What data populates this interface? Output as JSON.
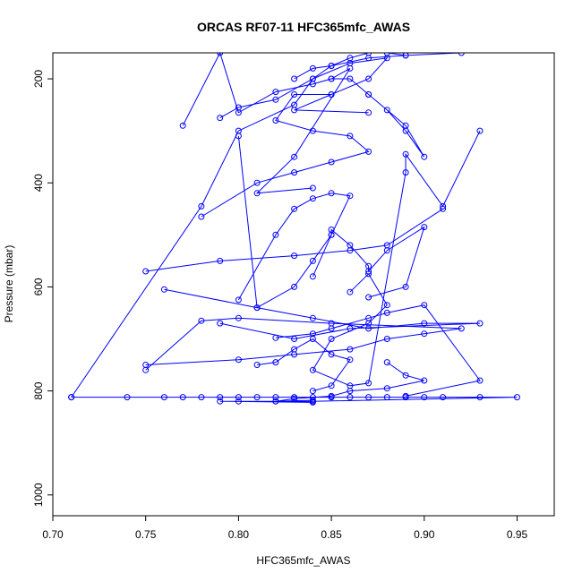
{
  "chart_data": {
    "type": "line",
    "title": "ORCAS RF07-11 HFC365mfc_AWAS",
    "xlabel": "HFC365mfc_AWAS",
    "ylabel": "Pressure (mbar)",
    "xlim": [
      0.7,
      0.97
    ],
    "ylim": [
      1040,
      150
    ],
    "y_inverted": true,
    "grid": false,
    "legend": "none",
    "marker": "open-circle",
    "color": "#0000ff",
    "x_ticks": [
      0.7,
      0.75,
      0.8,
      0.85,
      0.9,
      0.95
    ],
    "x_tick_labels": [
      "0.70",
      "0.75",
      "0.80",
      "0.85",
      "0.90",
      "0.95"
    ],
    "y_ticks": [
      200,
      400,
      600,
      800,
      1000
    ],
    "y_tick_labels": [
      "200",
      "400",
      "600",
      "800",
      "1000"
    ],
    "series": [
      {
        "x": [
          0.71,
          0.74,
          0.76,
          0.77,
          0.78,
          0.79,
          0.8,
          0.81,
          0.82,
          0.83,
          0.84,
          0.85,
          0.86,
          0.87,
          0.88,
          0.89,
          0.9,
          0.91,
          0.93,
          0.95,
          0.84,
          0.82,
          0.8,
          0.79,
          0.84
        ],
        "y": [
          812,
          812,
          812,
          812,
          812,
          812,
          812,
          812,
          812,
          812,
          812,
          812,
          812,
          812,
          812,
          812,
          812,
          812,
          812,
          812,
          820,
          820,
          820,
          820,
          822
        ]
      },
      {
        "x": [
          0.71,
          0.78,
          0.8,
          0.83,
          0.84,
          0.85,
          0.87,
          0.89,
          0.92
        ],
        "y": [
          812,
          445,
          300,
          250,
          200,
          175,
          160,
          155,
          150
        ]
      },
      {
        "x": [
          0.75,
          0.8,
          0.83,
          0.86,
          0.88,
          0.9,
          0.92,
          0.85,
          0.8,
          0.78,
          0.75
        ],
        "y": [
          750,
          740,
          730,
          720,
          700,
          690,
          680,
          670,
          660,
          665,
          760
        ]
      },
      {
        "x": [
          0.76,
          0.81,
          0.84,
          0.87,
          0.9,
          0.93,
          0.86,
          0.83,
          0.79
        ],
        "y": [
          605,
          640,
          660,
          680,
          670,
          670,
          680,
          700,
          670
        ]
      },
      {
        "x": [
          0.75,
          0.79,
          0.83,
          0.86,
          0.88,
          0.91
        ],
        "y": [
          570,
          550,
          540,
          530,
          520,
          450
        ]
      },
      {
        "x": [
          0.77,
          0.79,
          0.8,
          0.82,
          0.84,
          0.85,
          0.86,
          0.83,
          0.81,
          0.84
        ],
        "y": [
          290,
          150,
          265,
          225,
          210,
          200,
          180,
          350,
          420,
          410
        ]
      },
      {
        "x": [
          0.78,
          0.81,
          0.83,
          0.85,
          0.87,
          0.86,
          0.84,
          0.82,
          0.83,
          0.85
        ],
        "y": [
          465,
          400,
          380,
          360,
          340,
          310,
          300,
          280,
          230,
          230
        ]
      },
      {
        "x": [
          0.79,
          0.8,
          0.82,
          0.84,
          0.86,
          0.88,
          0.87,
          0.85,
          0.83,
          0.87
        ],
        "y": [
          275,
          255,
          240,
          200,
          170,
          160,
          200,
          230,
          260,
          265
        ]
      },
      {
        "x": [
          0.8,
          0.82,
          0.83,
          0.84,
          0.85,
          0.86,
          0.85,
          0.84,
          0.83,
          0.81,
          0.8
        ],
        "y": [
          625,
          500,
          450,
          430,
          420,
          425,
          500,
          550,
          600,
          640,
          310
        ]
      },
      {
        "x": [
          0.84,
          0.85,
          0.85,
          0.86,
          0.87,
          0.87,
          0.88,
          0.9,
          0.89,
          0.87
        ],
        "y": [
          580,
          500,
          490,
          520,
          560,
          570,
          530,
          485,
          600,
          620
        ]
      },
      {
        "x": [
          0.86,
          0.87,
          0.88,
          0.87,
          0.85,
          0.84,
          0.86,
          0.87,
          0.89,
          0.89,
          0.91,
          0.93
        ],
        "y": [
          610,
          575,
          635,
          670,
          700,
          760,
          790,
          785,
          380,
          345,
          445,
          300
        ]
      },
      {
        "x": [
          0.81,
          0.82,
          0.83,
          0.84,
          0.85,
          0.86,
          0.85,
          0.84
        ],
        "y": [
          750,
          745,
          720,
          700,
          730,
          740,
          790,
          800
        ]
      },
      {
        "x": [
          0.82,
          0.84,
          0.85,
          0.87,
          0.88,
          0.9,
          0.93,
          0.89
        ],
        "y": [
          698,
          690,
          680,
          660,
          650,
          635,
          780,
          810
        ]
      },
      {
        "x": [
          0.88,
          0.89,
          0.9,
          0.88,
          0.86,
          0.85,
          0.83,
          0.82,
          0.84
        ],
        "y": [
          745,
          770,
          780,
          795,
          800,
          810,
          815,
          820,
          818
        ]
      },
      {
        "x": [
          0.83,
          0.84,
          0.85,
          0.86,
          0.87,
          0.88,
          0.89
        ],
        "y": [
          200,
          180,
          175,
          160,
          150,
          150,
          155
        ]
      },
      {
        "x": [
          0.87,
          0.88,
          0.89,
          0.9,
          0.89,
          0.87,
          0.86,
          0.85
        ],
        "y": [
          230,
          260,
          300,
          350,
          290,
          230,
          200,
          200
        ]
      }
    ]
  }
}
